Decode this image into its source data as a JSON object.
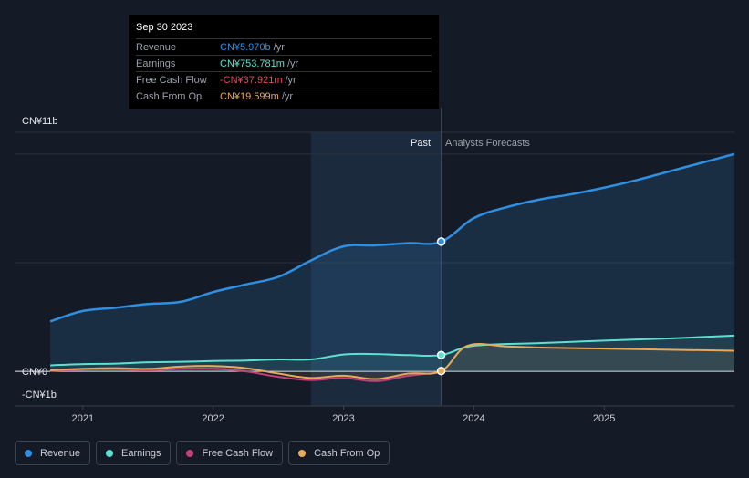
{
  "tooltip": {
    "date": "Sep 30 2023",
    "rows": [
      {
        "label": "Revenue",
        "value": "CN¥5.970b",
        "unit": "/yr",
        "color": "#2f8fe0"
      },
      {
        "label": "Earnings",
        "value": "CN¥753.781m",
        "unit": "/yr",
        "color": "#5ee0cf"
      },
      {
        "label": "Free Cash Flow",
        "value": "-CN¥37.921m",
        "unit": "/yr",
        "color": "#f0455a"
      },
      {
        "label": "Cash From Op",
        "value": "CN¥19.599m",
        "unit": "/yr",
        "color": "#e9a95a"
      }
    ]
  },
  "legend": [
    {
      "label": "Revenue",
      "color": "#2f8fe0"
    },
    {
      "label": "Earnings",
      "color": "#5ee0cf"
    },
    {
      "label": "Free Cash Flow",
      "color": "#c0407a"
    },
    {
      "label": "Cash From Op",
      "color": "#e9a95a"
    }
  ],
  "chart_data": {
    "type": "line",
    "title": "",
    "y_unit": "CN¥ billions",
    "ylim": [
      -1,
      11
    ],
    "y_tick_labels": [
      {
        "value": 11,
        "label": "CN¥11b"
      },
      {
        "value": 0,
        "label": "CN¥0"
      },
      {
        "value": -1,
        "label": "-CN¥1b"
      }
    ],
    "x_range": [
      2020.7,
      2026.0
    ],
    "x_ticks": [
      2021,
      2022,
      2023,
      2024,
      2025
    ],
    "x_tick_labels": [
      "2021",
      "2022",
      "2023",
      "2024",
      "2025"
    ],
    "divider_x": 2023.75,
    "highlight_start_x": 2022.75,
    "region_labels": {
      "past": "Past",
      "forecast": "Analysts Forecasts"
    },
    "series": [
      {
        "name": "Revenue",
        "color": "#2f8fe0",
        "filled": true,
        "x": [
          2020.75,
          2021.0,
          2021.25,
          2021.5,
          2021.75,
          2022.0,
          2022.25,
          2022.5,
          2022.75,
          2023.0,
          2023.25,
          2023.5,
          2023.75,
          2024.0,
          2024.25,
          2024.5,
          2024.75,
          2025.0,
          2025.25,
          2025.5,
          2025.75,
          2026.0
        ],
        "values": [
          2.3,
          2.78,
          2.93,
          3.1,
          3.2,
          3.65,
          4.0,
          4.35,
          5.1,
          5.75,
          5.8,
          5.9,
          5.97,
          7.05,
          7.55,
          7.9,
          8.15,
          8.45,
          8.8,
          9.2,
          9.6,
          10.0
        ]
      },
      {
        "name": "Earnings",
        "color": "#5ee0cf",
        "filled": true,
        "x": [
          2020.75,
          2021.0,
          2021.25,
          2021.5,
          2021.75,
          2022.0,
          2022.25,
          2022.5,
          2022.75,
          2023.0,
          2023.25,
          2023.5,
          2023.75,
          2024.0,
          2024.5,
          2025.0,
          2025.5,
          2026.0
        ],
        "values": [
          0.28,
          0.34,
          0.36,
          0.42,
          0.44,
          0.48,
          0.5,
          0.55,
          0.55,
          0.78,
          0.8,
          0.75,
          0.754,
          1.18,
          1.3,
          1.42,
          1.52,
          1.65
        ]
      },
      {
        "name": "Free Cash Flow",
        "color": "#c0407a",
        "filled": false,
        "x": [
          2020.75,
          2021.0,
          2021.25,
          2021.5,
          2021.75,
          2022.0,
          2022.25,
          2022.5,
          2022.75,
          2023.0,
          2023.25,
          2023.5,
          2023.75
        ],
        "values": [
          0.03,
          0.08,
          0.1,
          0.05,
          0.12,
          0.12,
          0.0,
          -0.25,
          -0.4,
          -0.3,
          -0.45,
          -0.2,
          -0.038
        ]
      },
      {
        "name": "Cash From Op",
        "color": "#e9a95a",
        "filled": true,
        "x": [
          2020.75,
          2021.0,
          2021.25,
          2021.5,
          2021.75,
          2022.0,
          2022.25,
          2022.5,
          2022.75,
          2023.0,
          2023.25,
          2023.5,
          2023.75,
          2023.95,
          2024.25,
          2024.5,
          2025.0,
          2025.5,
          2026.0
        ],
        "values": [
          0.05,
          0.12,
          0.15,
          0.12,
          0.22,
          0.25,
          0.15,
          -0.1,
          -0.3,
          -0.2,
          -0.35,
          -0.1,
          0.02,
          1.18,
          1.15,
          1.1,
          1.05,
          1.0,
          0.95
        ]
      }
    ],
    "markers": [
      {
        "series": "Revenue",
        "x": 2023.75,
        "value": 5.97
      },
      {
        "series": "Earnings",
        "x": 2023.75,
        "value": 0.754
      },
      {
        "series": "Cash From Op",
        "x": 2023.75,
        "value": 0.02
      }
    ]
  }
}
